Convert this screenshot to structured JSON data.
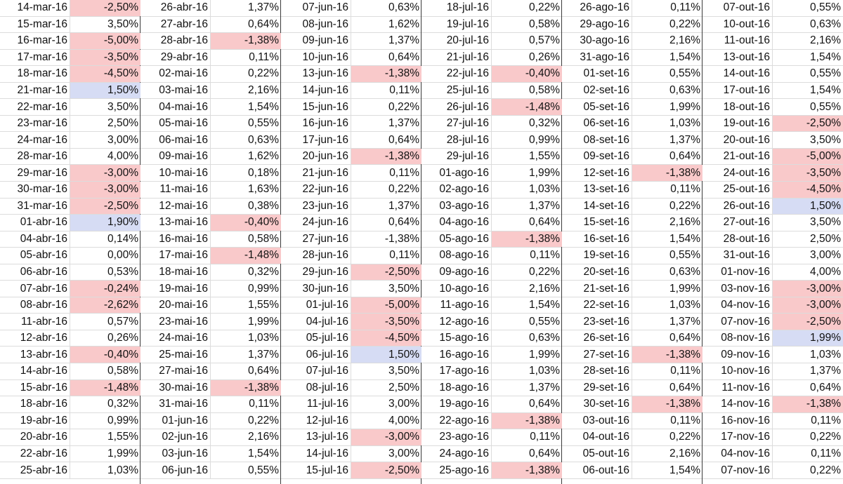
{
  "colors": {
    "negative_highlight": "#f9c9ca",
    "positive_highlight": "#d6dcf4"
  },
  "columns": [
    {
      "rows": [
        {
          "date": "14-mar-16",
          "value": "-2,50%",
          "hl": "red"
        },
        {
          "date": "15-mar-16",
          "value": "3,50%",
          "hl": ""
        },
        {
          "date": "16-mar-16",
          "value": "-5,00%",
          "hl": "red"
        },
        {
          "date": "17-mar-16",
          "value": "-3,50%",
          "hl": "red"
        },
        {
          "date": "18-mar-16",
          "value": "-4,50%",
          "hl": "red"
        },
        {
          "date": "21-mar-16",
          "value": "1,50%",
          "hl": "blue"
        },
        {
          "date": "22-mar-16",
          "value": "3,50%",
          "hl": ""
        },
        {
          "date": "23-mar-16",
          "value": "2,50%",
          "hl": ""
        },
        {
          "date": "24-mar-16",
          "value": "3,00%",
          "hl": ""
        },
        {
          "date": "28-mar-16",
          "value": "4,00%",
          "hl": ""
        },
        {
          "date": "29-mar-16",
          "value": "-3,00%",
          "hl": "red"
        },
        {
          "date": "30-mar-16",
          "value": "-3,00%",
          "hl": "red"
        },
        {
          "date": "31-mar-16",
          "value": "-2,50%",
          "hl": "red"
        },
        {
          "date": "01-abr-16",
          "value": "1,90%",
          "hl": "blue"
        },
        {
          "date": "04-abr-16",
          "value": "0,14%",
          "hl": ""
        },
        {
          "date": "05-abr-16",
          "value": "0,00%",
          "hl": ""
        },
        {
          "date": "06-abr-16",
          "value": "0,53%",
          "hl": ""
        },
        {
          "date": "07-abr-16",
          "value": "-0,24%",
          "hl": "red"
        },
        {
          "date": "08-abr-16",
          "value": "-2,62%",
          "hl": "red"
        },
        {
          "date": "11-abr-16",
          "value": "0,57%",
          "hl": ""
        },
        {
          "date": "12-abr-16",
          "value": "0,26%",
          "hl": ""
        },
        {
          "date": "13-abr-16",
          "value": "-0,40%",
          "hl": "red"
        },
        {
          "date": "14-abr-16",
          "value": "0,58%",
          "hl": ""
        },
        {
          "date": "15-abr-16",
          "value": "-1,48%",
          "hl": "red"
        },
        {
          "date": "18-abr-16",
          "value": "0,32%",
          "hl": ""
        },
        {
          "date": "19-abr-16",
          "value": "0,99%",
          "hl": ""
        },
        {
          "date": "20-abr-16",
          "value": "1,55%",
          "hl": ""
        },
        {
          "date": "22-abr-16",
          "value": "1,99%",
          "hl": ""
        },
        {
          "date": "25-abr-16",
          "value": "1,03%",
          "hl": ""
        }
      ]
    },
    {
      "rows": [
        {
          "date": "26-abr-16",
          "value": "1,37%",
          "hl": ""
        },
        {
          "date": "27-abr-16",
          "value": "0,64%",
          "hl": ""
        },
        {
          "date": "28-abr-16",
          "value": "-1,38%",
          "hl": "red"
        },
        {
          "date": "29-abr-16",
          "value": "0,11%",
          "hl": ""
        },
        {
          "date": "02-mai-16",
          "value": "0,22%",
          "hl": ""
        },
        {
          "date": "03-mai-16",
          "value": "2,16%",
          "hl": ""
        },
        {
          "date": "04-mai-16",
          "value": "1,54%",
          "hl": ""
        },
        {
          "date": "05-mai-16",
          "value": "0,55%",
          "hl": ""
        },
        {
          "date": "06-mai-16",
          "value": "0,63%",
          "hl": ""
        },
        {
          "date": "09-mai-16",
          "value": "1,62%",
          "hl": ""
        },
        {
          "date": "10-mai-16",
          "value": "0,18%",
          "hl": ""
        },
        {
          "date": "11-mai-16",
          "value": "1,63%",
          "hl": ""
        },
        {
          "date": "12-mai-16",
          "value": "0,38%",
          "hl": ""
        },
        {
          "date": "13-mai-16",
          "value": "-0,40%",
          "hl": "red"
        },
        {
          "date": "16-mai-16",
          "value": "0,58%",
          "hl": ""
        },
        {
          "date": "17-mai-16",
          "value": "-1,48%",
          "hl": "red"
        },
        {
          "date": "18-mai-16",
          "value": "0,32%",
          "hl": ""
        },
        {
          "date": "19-mai-16",
          "value": "0,99%",
          "hl": ""
        },
        {
          "date": "20-mai-16",
          "value": "1,55%",
          "hl": ""
        },
        {
          "date": "23-mai-16",
          "value": "1,99%",
          "hl": ""
        },
        {
          "date": "24-mai-16",
          "value": "1,03%",
          "hl": ""
        },
        {
          "date": "25-mai-16",
          "value": "1,37%",
          "hl": ""
        },
        {
          "date": "27-mai-16",
          "value": "0,64%",
          "hl": ""
        },
        {
          "date": "30-mai-16",
          "value": "-1,38%",
          "hl": "red"
        },
        {
          "date": "31-mai-16",
          "value": "0,11%",
          "hl": ""
        },
        {
          "date": "01-jun-16",
          "value": "0,22%",
          "hl": ""
        },
        {
          "date": "02-jun-16",
          "value": "2,16%",
          "hl": ""
        },
        {
          "date": "03-jun-16",
          "value": "1,54%",
          "hl": ""
        },
        {
          "date": "06-jun-16",
          "value": "0,55%",
          "hl": ""
        }
      ]
    },
    {
      "rows": [
        {
          "date": "07-jun-16",
          "value": "0,63%",
          "hl": ""
        },
        {
          "date": "08-jun-16",
          "value": "1,62%",
          "hl": ""
        },
        {
          "date": "09-jun-16",
          "value": "1,37%",
          "hl": ""
        },
        {
          "date": "10-jun-16",
          "value": "0,64%",
          "hl": ""
        },
        {
          "date": "13-jun-16",
          "value": "-1,38%",
          "hl": "red"
        },
        {
          "date": "14-jun-16",
          "value": "0,11%",
          "hl": ""
        },
        {
          "date": "15-jun-16",
          "value": "0,22%",
          "hl": ""
        },
        {
          "date": "16-jun-16",
          "value": "1,37%",
          "hl": ""
        },
        {
          "date": "17-jun-16",
          "value": "0,64%",
          "hl": ""
        },
        {
          "date": "20-jun-16",
          "value": "-1,38%",
          "hl": "red"
        },
        {
          "date": "21-jun-16",
          "value": "0,11%",
          "hl": ""
        },
        {
          "date": "22-jun-16",
          "value": "0,22%",
          "hl": ""
        },
        {
          "date": "23-jun-16",
          "value": "1,37%",
          "hl": ""
        },
        {
          "date": "24-jun-16",
          "value": "0,64%",
          "hl": ""
        },
        {
          "date": "27-jun-16",
          "value": "-1,38%",
          "hl": ""
        },
        {
          "date": "28-jun-16",
          "value": "0,11%",
          "hl": ""
        },
        {
          "date": "29-jun-16",
          "value": "-2,50%",
          "hl": "red"
        },
        {
          "date": "30-jun-16",
          "value": "3,50%",
          "hl": ""
        },
        {
          "date": "01-jul-16",
          "value": "-5,00%",
          "hl": "red"
        },
        {
          "date": "04-jul-16",
          "value": "-3,50%",
          "hl": "red"
        },
        {
          "date": "05-jul-16",
          "value": "-4,50%",
          "hl": "red"
        },
        {
          "date": "06-jul-16",
          "value": "1,50%",
          "hl": "blue"
        },
        {
          "date": "07-jul-16",
          "value": "3,50%",
          "hl": ""
        },
        {
          "date": "08-jul-16",
          "value": "2,50%",
          "hl": ""
        },
        {
          "date": "11-jul-16",
          "value": "3,00%",
          "hl": ""
        },
        {
          "date": "12-jul-16",
          "value": "4,00%",
          "hl": ""
        },
        {
          "date": "13-jul-16",
          "value": "-3,00%",
          "hl": "red"
        },
        {
          "date": "14-jul-16",
          "value": "3,00%",
          "hl": ""
        },
        {
          "date": "15-jul-16",
          "value": "-2,50%",
          "hl": "red"
        }
      ]
    },
    {
      "rows": [
        {
          "date": "18-jul-16",
          "value": "0,22%",
          "hl": ""
        },
        {
          "date": "19-jul-16",
          "value": "0,58%",
          "hl": ""
        },
        {
          "date": "20-jul-16",
          "value": "0,57%",
          "hl": ""
        },
        {
          "date": "21-jul-16",
          "value": "0,26%",
          "hl": ""
        },
        {
          "date": "22-jul-16",
          "value": "-0,40%",
          "hl": "red"
        },
        {
          "date": "25-jul-16",
          "value": "0,58%",
          "hl": ""
        },
        {
          "date": "26-jul-16",
          "value": "-1,48%",
          "hl": "red"
        },
        {
          "date": "27-jul-16",
          "value": "0,32%",
          "hl": ""
        },
        {
          "date": "28-jul-16",
          "value": "0,99%",
          "hl": ""
        },
        {
          "date": "29-jul-16",
          "value": "1,55%",
          "hl": ""
        },
        {
          "date": "01-ago-16",
          "value": "1,99%",
          "hl": ""
        },
        {
          "date": "02-ago-16",
          "value": "1,03%",
          "hl": ""
        },
        {
          "date": "03-ago-16",
          "value": "1,37%",
          "hl": ""
        },
        {
          "date": "04-ago-16",
          "value": "0,64%",
          "hl": ""
        },
        {
          "date": "05-ago-16",
          "value": "-1,38%",
          "hl": "red"
        },
        {
          "date": "08-ago-16",
          "value": "0,11%",
          "hl": ""
        },
        {
          "date": "09-ago-16",
          "value": "0,22%",
          "hl": ""
        },
        {
          "date": "10-ago-16",
          "value": "2,16%",
          "hl": ""
        },
        {
          "date": "11-ago-16",
          "value": "1,54%",
          "hl": ""
        },
        {
          "date": "12-ago-16",
          "value": "0,55%",
          "hl": ""
        },
        {
          "date": "15-ago-16",
          "value": "0,63%",
          "hl": ""
        },
        {
          "date": "16-ago-16",
          "value": "1,99%",
          "hl": ""
        },
        {
          "date": "17-ago-16",
          "value": "1,03%",
          "hl": ""
        },
        {
          "date": "18-ago-16",
          "value": "1,37%",
          "hl": ""
        },
        {
          "date": "19-ago-16",
          "value": "0,64%",
          "hl": ""
        },
        {
          "date": "22-ago-16",
          "value": "-1,38%",
          "hl": "red"
        },
        {
          "date": "23-ago-16",
          "value": "0,11%",
          "hl": ""
        },
        {
          "date": "24-ago-16",
          "value": "0,64%",
          "hl": ""
        },
        {
          "date": "25-ago-16",
          "value": "-1,38%",
          "hl": "red"
        }
      ]
    },
    {
      "rows": [
        {
          "date": "26-ago-16",
          "value": "0,11%",
          "hl": ""
        },
        {
          "date": "29-ago-16",
          "value": "0,22%",
          "hl": ""
        },
        {
          "date": "30-ago-16",
          "value": "2,16%",
          "hl": ""
        },
        {
          "date": "31-ago-16",
          "value": "1,54%",
          "hl": ""
        },
        {
          "date": "01-set-16",
          "value": "0,55%",
          "hl": ""
        },
        {
          "date": "02-set-16",
          "value": "0,63%",
          "hl": ""
        },
        {
          "date": "05-set-16",
          "value": "1,99%",
          "hl": ""
        },
        {
          "date": "06-set-16",
          "value": "1,03%",
          "hl": ""
        },
        {
          "date": "08-set-16",
          "value": "1,37%",
          "hl": ""
        },
        {
          "date": "09-set-16",
          "value": "0,64%",
          "hl": ""
        },
        {
          "date": "12-set-16",
          "value": "-1,38%",
          "hl": "red"
        },
        {
          "date": "13-set-16",
          "value": "0,11%",
          "hl": ""
        },
        {
          "date": "14-set-16",
          "value": "0,22%",
          "hl": ""
        },
        {
          "date": "15-set-16",
          "value": "2,16%",
          "hl": ""
        },
        {
          "date": "16-set-16",
          "value": "1,54%",
          "hl": ""
        },
        {
          "date": "19-set-16",
          "value": "0,55%",
          "hl": ""
        },
        {
          "date": "20-set-16",
          "value": "0,63%",
          "hl": ""
        },
        {
          "date": "21-set-16",
          "value": "1,99%",
          "hl": ""
        },
        {
          "date": "22-set-16",
          "value": "1,03%",
          "hl": ""
        },
        {
          "date": "23-set-16",
          "value": "1,37%",
          "hl": ""
        },
        {
          "date": "26-set-16",
          "value": "0,64%",
          "hl": ""
        },
        {
          "date": "27-set-16",
          "value": "-1,38%",
          "hl": "red"
        },
        {
          "date": "28-set-16",
          "value": "0,11%",
          "hl": ""
        },
        {
          "date": "29-set-16",
          "value": "0,64%",
          "hl": ""
        },
        {
          "date": "30-set-16",
          "value": "-1,38%",
          "hl": "red"
        },
        {
          "date": "03-out-16",
          "value": "0,11%",
          "hl": ""
        },
        {
          "date": "04-out-16",
          "value": "0,22%",
          "hl": ""
        },
        {
          "date": "05-out-16",
          "value": "2,16%",
          "hl": ""
        },
        {
          "date": "06-out-16",
          "value": "1,54%",
          "hl": ""
        }
      ]
    },
    {
      "rows": [
        {
          "date": "07-out-16",
          "value": "0,55%",
          "hl": ""
        },
        {
          "date": "10-out-16",
          "value": "0,63%",
          "hl": ""
        },
        {
          "date": "11-out-16",
          "value": "2,16%",
          "hl": ""
        },
        {
          "date": "13-out-16",
          "value": "1,54%",
          "hl": ""
        },
        {
          "date": "14-out-16",
          "value": "0,55%",
          "hl": ""
        },
        {
          "date": "17-out-16",
          "value": "1,54%",
          "hl": ""
        },
        {
          "date": "18-out-16",
          "value": "0,55%",
          "hl": ""
        },
        {
          "date": "19-out-16",
          "value": "-2,50%",
          "hl": "red"
        },
        {
          "date": "20-out-16",
          "value": "3,50%",
          "hl": ""
        },
        {
          "date": "21-out-16",
          "value": "-5,00%",
          "hl": "red"
        },
        {
          "date": "24-out-16",
          "value": "-3,50%",
          "hl": "red"
        },
        {
          "date": "25-out-16",
          "value": "-4,50%",
          "hl": "red"
        },
        {
          "date": "26-out-16",
          "value": "1,50%",
          "hl": "blue"
        },
        {
          "date": "27-out-16",
          "value": "3,50%",
          "hl": ""
        },
        {
          "date": "28-out-16",
          "value": "2,50%",
          "hl": ""
        },
        {
          "date": "31-out-16",
          "value": "3,00%",
          "hl": ""
        },
        {
          "date": "01-nov-16",
          "value": "4,00%",
          "hl": ""
        },
        {
          "date": "03-nov-16",
          "value": "-3,00%",
          "hl": "red"
        },
        {
          "date": "04-nov-16",
          "value": "-3,00%",
          "hl": "red"
        },
        {
          "date": "07-nov-16",
          "value": "-2,50%",
          "hl": "red"
        },
        {
          "date": "08-nov-16",
          "value": "1,99%",
          "hl": "blue"
        },
        {
          "date": "09-nov-16",
          "value": "1,03%",
          "hl": ""
        },
        {
          "date": "10-nov-16",
          "value": "1,37%",
          "hl": ""
        },
        {
          "date": "11-nov-16",
          "value": "0,64%",
          "hl": ""
        },
        {
          "date": "14-nov-16",
          "value": "-1,38%",
          "hl": "red"
        },
        {
          "date": "16-nov-16",
          "value": "0,11%",
          "hl": ""
        },
        {
          "date": "17-nov-16",
          "value": "0,22%",
          "hl": ""
        },
        {
          "date": "04-nov-16",
          "value": "0,11%",
          "hl": ""
        },
        {
          "date": "07-nov-16",
          "value": "0,22%",
          "hl": ""
        }
      ]
    }
  ]
}
